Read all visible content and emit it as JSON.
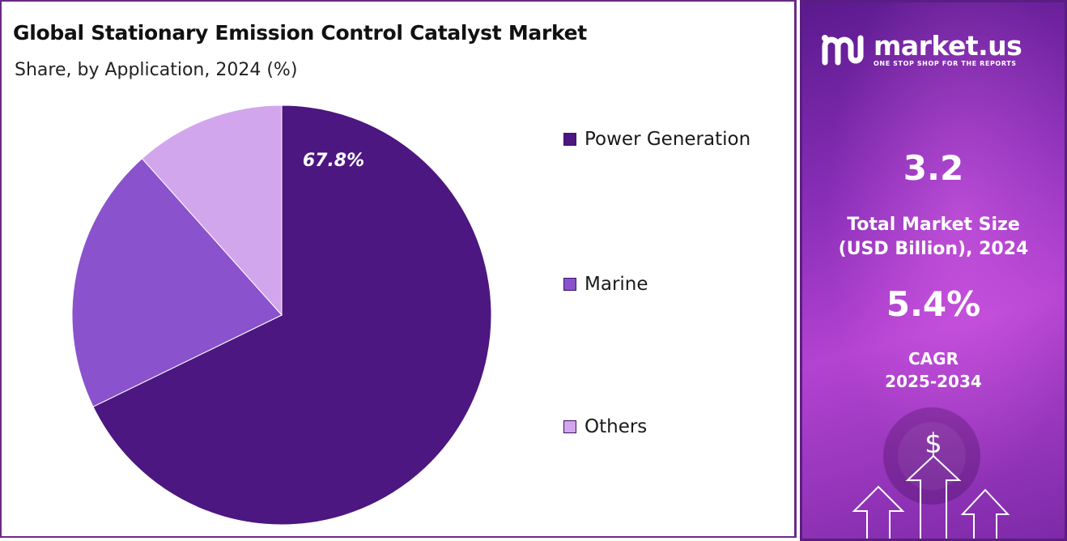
{
  "chart_data": {
    "type": "pie",
    "title": "Global Stationary Emission Control Catalyst Market",
    "subtitle": "Share, by Application, 2024 (%)",
    "categories": [
      "Power Generation",
      "Marine",
      "Others"
    ],
    "values": [
      67.8,
      20.6,
      11.6
    ],
    "colors": [
      "#4c1780",
      "#8a52cc",
      "#d2a6ec"
    ],
    "data_labels": [
      "67.8%",
      "",
      ""
    ],
    "legend": "right"
  },
  "info_panel": {
    "brand": {
      "name": "market.us",
      "tagline": "ONE STOP SHOP FOR THE REPORTS"
    },
    "market_size": {
      "value": "3.2",
      "label_line1": "Total Market Size",
      "label_line2": "(USD Billion), 2024"
    },
    "cagr": {
      "value": "5.4%",
      "label_line1": "CAGR",
      "label_line2": "2025-2034"
    },
    "decor": {
      "currency_symbol": "$"
    }
  }
}
